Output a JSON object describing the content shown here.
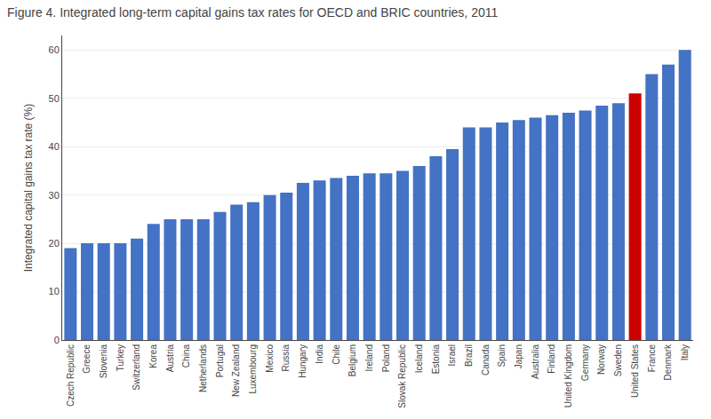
{
  "chart_data": {
    "type": "bar",
    "title": "Figure 4. Integrated long-term capital gains tax rates for OECD and BRIC countries, 2011",
    "ylabel": "Integrated capital gains tax rate (%)",
    "categories": [
      "Czech Republic",
      "Greece",
      "Slovenia",
      "Turkey",
      "Switzerland",
      "Korea",
      "Austria",
      "China",
      "Netherlands",
      "Portugal",
      "New Zealand",
      "Luxembourg",
      "Mexico",
      "Russia",
      "Hungary",
      "India",
      "Chile",
      "Belgium",
      "Ireland",
      "Poland",
      "Slovak Republic",
      "Iceland",
      "Estonia",
      "Israel",
      "Brazil",
      "Canada",
      "Spain",
      "Japan",
      "Australia",
      "Finland",
      "United Kingdom",
      "Germany",
      "Norway",
      "Sweden",
      "United States",
      "France",
      "Denmark",
      "Italy"
    ],
    "values": [
      19.0,
      20.0,
      20.0,
      20.0,
      21.0,
      24.0,
      25.0,
      25.0,
      25.0,
      26.5,
      28.0,
      28.5,
      30.0,
      30.5,
      32.5,
      33.0,
      33.5,
      34.0,
      34.5,
      34.5,
      35.0,
      36.0,
      38.0,
      39.5,
      44.0,
      44.0,
      45.0,
      45.5,
      46.0,
      46.5,
      47.0,
      47.5,
      48.5,
      49.0,
      51.0,
      55.0,
      57.0,
      60.0
    ],
    "colors": [
      "#4472C4",
      "#4472C4",
      "#4472C4",
      "#4472C4",
      "#4472C4",
      "#4472C4",
      "#4472C4",
      "#4472C4",
      "#4472C4",
      "#4472C4",
      "#4472C4",
      "#4472C4",
      "#4472C4",
      "#4472C4",
      "#4472C4",
      "#4472C4",
      "#4472C4",
      "#4472C4",
      "#4472C4",
      "#4472C4",
      "#4472C4",
      "#4472C4",
      "#4472C4",
      "#4472C4",
      "#4472C4",
      "#4472C4",
      "#4472C4",
      "#4472C4",
      "#4472C4",
      "#4472C4",
      "#4472C4",
      "#4472C4",
      "#4472C4",
      "#4472C4",
      "#CC0000",
      "#4472C4",
      "#4472C4",
      "#4472C4"
    ],
    "ylim": [
      0,
      63
    ],
    "yticks": [
      0,
      10,
      20,
      30,
      40,
      50,
      60
    ],
    "grid": true
  }
}
